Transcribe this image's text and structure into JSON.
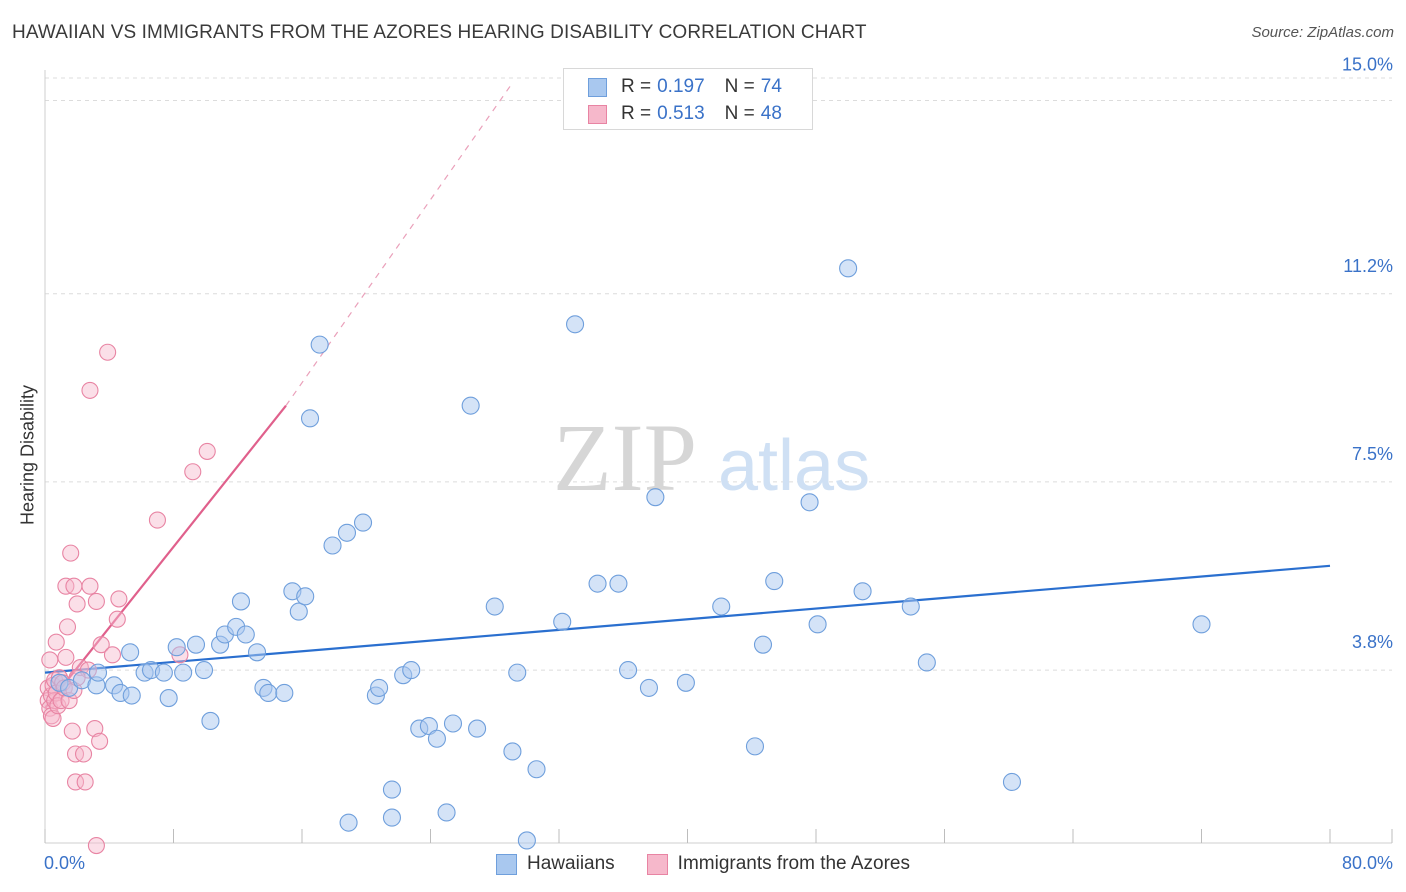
{
  "header": {
    "title": "HAWAIIAN VS IMMIGRANTS FROM THE AZORES HEARING DISABILITY CORRELATION CHART",
    "source": "Source: ZipAtlas.com"
  },
  "watermark": {
    "zip": "ZIP",
    "atlas": "atlas"
  },
  "legend_stats": [
    {
      "r_label": "R =",
      "r_value": "0.197",
      "n_label": "N =",
      "n_value": "74"
    },
    {
      "r_label": "R =",
      "r_value": "0.513",
      "n_label": "N =",
      "n_value": "48"
    }
  ],
  "colors": {
    "hawaiian_fill": "#a9c8ef",
    "hawaiian_stroke": "#6f9fdc",
    "hawaiian_line": "#2a6fcf",
    "azores_fill": "#f6b8cb",
    "azores_stroke": "#e884a3",
    "azores_line": "#e0608c",
    "axis_text": "#3a72c8",
    "grid": "#dcdcdc"
  },
  "chart_data": {
    "type": "scatter",
    "title": "HAWAIIAN VS IMMIGRANTS FROM THE AZORES HEARING DISABILITY CORRELATION CHART",
    "xlabel": "",
    "ylabel": "Hearing Disability",
    "xlim": [
      0,
      80
    ],
    "ylim": [
      0.4,
      15.6
    ],
    "x_tick_labels": [
      "0.0%",
      "80.0%"
    ],
    "y_ticks": [
      3.8,
      7.5,
      11.2,
      15.0
    ],
    "y_tick_labels": [
      "3.8%",
      "7.5%",
      "11.2%",
      "15.0%"
    ],
    "grid": true,
    "legend_position": "bottom",
    "series": [
      {
        "name": "Hawaiians",
        "r": 0.197,
        "n": 74,
        "trend": {
          "x0": 0,
          "y0": 3.75,
          "x1": 80,
          "y1": 5.85
        },
        "points": [
          [
            0.9,
            3.55
          ],
          [
            1.5,
            3.45
          ],
          [
            2.3,
            3.6
          ],
          [
            3.2,
            3.5
          ],
          [
            3.3,
            3.75
          ],
          [
            4.3,
            3.5
          ],
          [
            4.7,
            3.35
          ],
          [
            5.4,
            3.3
          ],
          [
            5.3,
            4.15
          ],
          [
            6.2,
            3.75
          ],
          [
            6.6,
            3.8
          ],
          [
            7.4,
            3.75
          ],
          [
            7.7,
            3.25
          ],
          [
            8.2,
            4.25
          ],
          [
            8.6,
            3.75
          ],
          [
            9.4,
            4.3
          ],
          [
            9.9,
            3.8
          ],
          [
            10.3,
            2.8
          ],
          [
            10.9,
            4.3
          ],
          [
            11.2,
            4.5
          ],
          [
            11.9,
            4.65
          ],
          [
            12.2,
            5.15
          ],
          [
            12.5,
            4.5
          ],
          [
            13.2,
            4.15
          ],
          [
            13.6,
            3.45
          ],
          [
            13.9,
            3.35
          ],
          [
            14.9,
            3.35
          ],
          [
            15.4,
            5.35
          ],
          [
            15.8,
            4.95
          ],
          [
            16.2,
            5.25
          ],
          [
            16.5,
            8.75
          ],
          [
            17.1,
            10.2
          ],
          [
            17.9,
            6.25
          ],
          [
            18.8,
            6.5
          ],
          [
            19.8,
            6.7
          ],
          [
            20.6,
            3.3
          ],
          [
            21.6,
            1.45
          ],
          [
            21.6,
            0.9
          ],
          [
            22.3,
            3.7
          ],
          [
            22.8,
            3.8
          ],
          [
            23.3,
            2.65
          ],
          [
            23.9,
            2.7
          ],
          [
            24.4,
            2.45
          ],
          [
            25.0,
            1.0
          ],
          [
            25.4,
            2.75
          ],
          [
            26.5,
            9.0
          ],
          [
            26.9,
            2.65
          ],
          [
            28.0,
            5.05
          ],
          [
            29.1,
            2.2
          ],
          [
            29.4,
            3.75
          ],
          [
            30.0,
            0.45
          ],
          [
            30.6,
            1.85
          ],
          [
            32.2,
            4.75
          ],
          [
            33.0,
            10.6
          ],
          [
            34.4,
            5.5
          ],
          [
            35.7,
            5.5
          ],
          [
            37.6,
            3.45
          ],
          [
            38.0,
            7.2
          ],
          [
            42.1,
            5.05
          ],
          [
            44.2,
            2.3
          ],
          [
            44.7,
            4.3
          ],
          [
            45.4,
            5.55
          ],
          [
            47.6,
            7.1
          ],
          [
            48.1,
            4.7
          ],
          [
            50.0,
            11.7
          ],
          [
            50.9,
            5.35
          ],
          [
            53.9,
            5.05
          ],
          [
            54.9,
            3.95
          ],
          [
            60.2,
            1.6
          ],
          [
            72.0,
            4.7
          ],
          [
            20.8,
            3.45
          ],
          [
            18.9,
            0.8
          ],
          [
            36.3,
            3.8
          ],
          [
            39.9,
            3.55
          ]
        ]
      },
      {
        "name": "Immigrants from the Azores",
        "r": 0.513,
        "n": 48,
        "trend": {
          "x0": 0,
          "y0": 3.05,
          "x1": 15,
          "y1": 9.0
        },
        "trend_extension": {
          "x0": 15,
          "y0": 9.0,
          "x1": 29,
          "y1": 15.3
        },
        "points": [
          [
            0.2,
            3.45
          ],
          [
            0.2,
            3.2
          ],
          [
            0.3,
            3.05
          ],
          [
            0.3,
            4.0
          ],
          [
            0.4,
            3.3
          ],
          [
            0.4,
            2.9
          ],
          [
            0.5,
            3.5
          ],
          [
            0.5,
            2.85
          ],
          [
            0.6,
            3.6
          ],
          [
            0.6,
            3.2
          ],
          [
            0.7,
            4.35
          ],
          [
            0.7,
            3.35
          ],
          [
            0.8,
            3.1
          ],
          [
            0.9,
            3.65
          ],
          [
            1.0,
            3.2
          ],
          [
            1.1,
            3.55
          ],
          [
            1.2,
            3.45
          ],
          [
            1.3,
            5.45
          ],
          [
            1.3,
            4.05
          ],
          [
            1.4,
            4.65
          ],
          [
            1.5,
            3.2
          ],
          [
            1.6,
            6.1
          ],
          [
            1.7,
            2.6
          ],
          [
            1.8,
            3.4
          ],
          [
            1.8,
            5.45
          ],
          [
            1.9,
            2.15
          ],
          [
            1.9,
            1.6
          ],
          [
            2.0,
            5.1
          ],
          [
            2.2,
            3.85
          ],
          [
            2.4,
            2.15
          ],
          [
            2.5,
            1.6
          ],
          [
            2.7,
            3.8
          ],
          [
            2.8,
            9.3
          ],
          [
            2.8,
            5.45
          ],
          [
            3.1,
            2.65
          ],
          [
            3.2,
            5.15
          ],
          [
            3.2,
            0.35
          ],
          [
            3.4,
            2.4
          ],
          [
            3.5,
            4.3
          ],
          [
            3.9,
            10.05
          ],
          [
            4.2,
            4.1
          ],
          [
            4.5,
            4.8
          ],
          [
            4.6,
            5.2
          ],
          [
            7.0,
            6.75
          ],
          [
            8.4,
            4.1
          ],
          [
            9.2,
            7.7
          ],
          [
            10.1,
            8.1
          ],
          [
            2.0,
            3.65
          ]
        ]
      }
    ]
  },
  "legend_bottom": {
    "items": [
      "Hawaiians",
      "Immigrants from the Azores"
    ]
  }
}
